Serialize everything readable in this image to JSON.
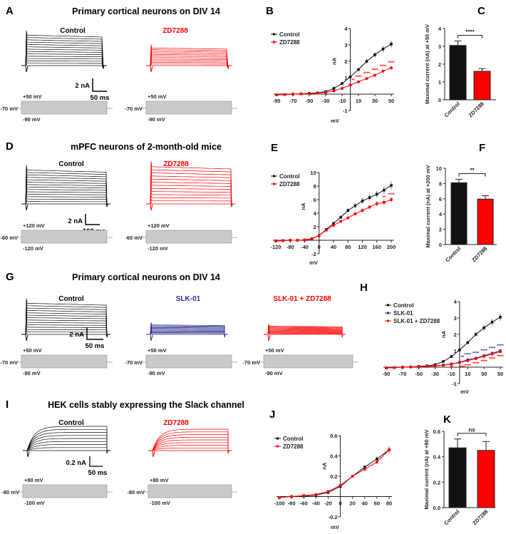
{
  "panels": {
    "A": {
      "label": "A",
      "title": "Primary cortical neurons on DIV 14",
      "conditions": [
        "Control",
        "ZD7288"
      ],
      "scale": {
        "current": "2 nA",
        "time": "50 ms"
      },
      "protocol": {
        "top": "+50 mV",
        "hold": "-70 mV",
        "bottom": "-90 mV"
      }
    },
    "D": {
      "label": "D",
      "title": "mPFC neurons of 2-month-old mice",
      "conditions": [
        "Control",
        "ZD7288"
      ],
      "scale": {
        "current": "2 nA",
        "time": "100 ms"
      },
      "protocol": {
        "top": "+120 mV",
        "hold": "-60 mV",
        "bottom": "-120 mV"
      }
    },
    "G": {
      "label": "G",
      "title": "Primary cortical neurons on DIV 14",
      "conditions": [
        "Control",
        "SLK-01",
        "SLK-01 + ZD7288"
      ],
      "scale": {
        "current": "2 nA",
        "time": "50 ms"
      },
      "protocol": {
        "top": "+50 mV",
        "hold": "-70 mV",
        "bottom": "-90 mV"
      }
    },
    "I": {
      "label": "I",
      "title": "HEK cells stably expressing the Slack channel",
      "conditions": [
        "Control",
        "ZD7288"
      ],
      "scale": {
        "current": "0.2 nA",
        "time": "50 ms"
      },
      "protocol": {
        "top": "+80 mV",
        "hold": "-80 mV",
        "bottom": "-100 mV"
      }
    }
  },
  "colors": {
    "control": "#111111",
    "zd7288": "#ff0000",
    "slk01": "#2b2f8f"
  },
  "chart_data": [
    {
      "id": "B",
      "label": "B",
      "type": "line",
      "xlabel": "mV",
      "ylabel": "nA",
      "xlim": [
        -90,
        50
      ],
      "ylim": [
        -1,
        4
      ],
      "xticks": [
        "-90",
        "-70",
        "-50",
        "-30",
        "-10",
        "10",
        "30",
        "50"
      ],
      "yticks": [
        "-1",
        "1",
        "2",
        "3",
        "4"
      ],
      "x": [
        -90,
        -80,
        -70,
        -60,
        -50,
        -40,
        -30,
        -20,
        -10,
        0,
        10,
        20,
        30,
        40,
        50
      ],
      "series": [
        {
          "name": "Control",
          "color": "#111111",
          "values": [
            -0.05,
            -0.03,
            0,
            0.02,
            0.05,
            0.08,
            0.15,
            0.35,
            0.65,
            1.05,
            1.5,
            2.0,
            2.4,
            2.75,
            3.05
          ]
        },
        {
          "name": "ZD7288",
          "color": "#ff0000",
          "values": [
            -0.05,
            -0.03,
            0,
            0.01,
            0.03,
            0.06,
            0.1,
            0.2,
            0.35,
            0.55,
            0.75,
            0.95,
            1.15,
            1.4,
            1.6
          ],
          "annotations": [
            "**",
            "****",
            "****",
            "****",
            "****",
            "****"
          ]
        }
      ]
    },
    {
      "id": "C",
      "label": "C",
      "type": "bar",
      "ylabel": "Maximal current (nA) at +50 mV",
      "ylim": [
        0,
        4
      ],
      "yticks": [
        "0",
        "1",
        "2",
        "3",
        "4"
      ],
      "categories": [
        "Control",
        "ZD7288"
      ],
      "values": [
        3.05,
        1.6
      ],
      "errors": [
        0.25,
        0.15
      ],
      "significance": "****"
    },
    {
      "id": "E",
      "label": "E",
      "type": "line",
      "xlabel": "mV",
      "ylabel": "nA",
      "xlim": [
        -120,
        200
      ],
      "ylim": [
        -2,
        10
      ],
      "xticks": [
        "-120",
        "-80",
        "-40",
        "0",
        "40",
        "80",
        "120",
        "160",
        "200"
      ],
      "yticks": [
        "-2",
        "2",
        "4",
        "6",
        "8",
        "10"
      ],
      "x": [
        -120,
        -100,
        -80,
        -60,
        -40,
        -20,
        0,
        20,
        40,
        60,
        80,
        100,
        120,
        140,
        160,
        180,
        200
      ],
      "series": [
        {
          "name": "Control",
          "color": "#111111",
          "values": [
            -0.1,
            -0.05,
            0,
            0,
            0.05,
            0.2,
            0.7,
            1.6,
            2.5,
            3.4,
            4.4,
            5.1,
            5.8,
            6.3,
            6.8,
            7.4,
            8.1
          ]
        },
        {
          "name": "ZD7288",
          "color": "#ff0000",
          "values": [
            -0.1,
            -0.05,
            0,
            0,
            0.05,
            0.25,
            0.7,
            1.5,
            2.2,
            2.8,
            3.3,
            3.9,
            4.4,
            4.9,
            5.4,
            5.6,
            6.0
          ],
          "annotations": [
            "**",
            "****"
          ]
        }
      ]
    },
    {
      "id": "F",
      "label": "F",
      "type": "bar",
      "ylabel": "Maximal current (nA) at +200 mV",
      "ylim": [
        0,
        10
      ],
      "yticks": [
        "0",
        "2",
        "4",
        "6",
        "8",
        "10"
      ],
      "categories": [
        "Control",
        "ZD7288"
      ],
      "values": [
        8.1,
        5.95
      ],
      "errors": [
        0.45,
        0.45
      ],
      "significance": "**"
    },
    {
      "id": "H",
      "label": "H",
      "type": "line",
      "xlabel": "mV",
      "ylabel": "nA",
      "xlim": [
        -90,
        50
      ],
      "ylim": [
        -1,
        4
      ],
      "xticks": [
        "-90",
        "-70",
        "-50",
        "-30",
        "-10",
        "10",
        "30",
        "50"
      ],
      "yticks": [
        "-1",
        "1",
        "2",
        "3",
        "4"
      ],
      "x": [
        -90,
        -80,
        -70,
        -60,
        -50,
        -40,
        -30,
        -20,
        -10,
        0,
        10,
        20,
        30,
        40,
        50
      ],
      "series": [
        {
          "name": "Control",
          "color": "#111111",
          "values": [
            -0.05,
            -0.03,
            0,
            0.02,
            0.05,
            0.08,
            0.15,
            0.35,
            0.65,
            1.05,
            1.5,
            2.0,
            2.4,
            2.75,
            3.05
          ]
        },
        {
          "name": "SLK-01",
          "color": "#2b2f8f",
          "values": [
            -0.05,
            -0.03,
            0,
            0.01,
            0.03,
            0.05,
            0.08,
            0.13,
            0.2,
            0.3,
            0.45,
            0.55,
            0.7,
            0.85,
            1.0
          ],
          "annotations": [
            "**",
            "****",
            "****",
            "****",
            "****",
            "****"
          ]
        },
        {
          "name": "SLK-01 + ZD7288",
          "color": "#ff0000",
          "values": [
            -0.05,
            -0.03,
            0,
            0.01,
            0.03,
            0.05,
            0.07,
            0.12,
            0.18,
            0.28,
            0.4,
            0.52,
            0.66,
            0.8,
            0.95
          ],
          "annotations": [
            "**",
            "***",
            "****",
            "****",
            "****",
            "****",
            "****"
          ]
        }
      ]
    },
    {
      "id": "J",
      "label": "J",
      "type": "line",
      "xlabel": "mV",
      "ylabel": "nA",
      "xlim": [
        -100,
        80
      ],
      "ylim": [
        -0.2,
        0.6
      ],
      "xticks": [
        "-100",
        "-80",
        "-60",
        "-40",
        "-20",
        "0",
        "20",
        "40",
        "60",
        "80"
      ],
      "yticks": [
        "-0.2",
        "0.2",
        "0.4",
        "0.6"
      ],
      "x": [
        -100,
        -80,
        -60,
        -40,
        -20,
        0,
        20,
        40,
        60,
        80
      ],
      "series": [
        {
          "name": "Control",
          "color": "#111111",
          "values": [
            -0.01,
            0,
            0.005,
            0.015,
            0.04,
            0.1,
            0.2,
            0.29,
            0.37,
            0.46
          ]
        },
        {
          "name": "ZD7288",
          "color": "#ff0000",
          "values": [
            -0.01,
            0,
            0.01,
            0.02,
            0.05,
            0.11,
            0.2,
            0.27,
            0.34,
            0.46
          ]
        }
      ]
    },
    {
      "id": "K",
      "label": "K",
      "type": "bar",
      "ylabel": "Maximal current (nA) at +80 mV",
      "ylim": [
        0,
        0.6
      ],
      "yticks": [
        "0.0",
        "0.2",
        "0.4",
        "0.6"
      ],
      "categories": [
        "Control",
        "ZD7288"
      ],
      "values": [
        0.47,
        0.45
      ],
      "errors": [
        0.07,
        0.07
      ],
      "significance": "ns"
    }
  ]
}
